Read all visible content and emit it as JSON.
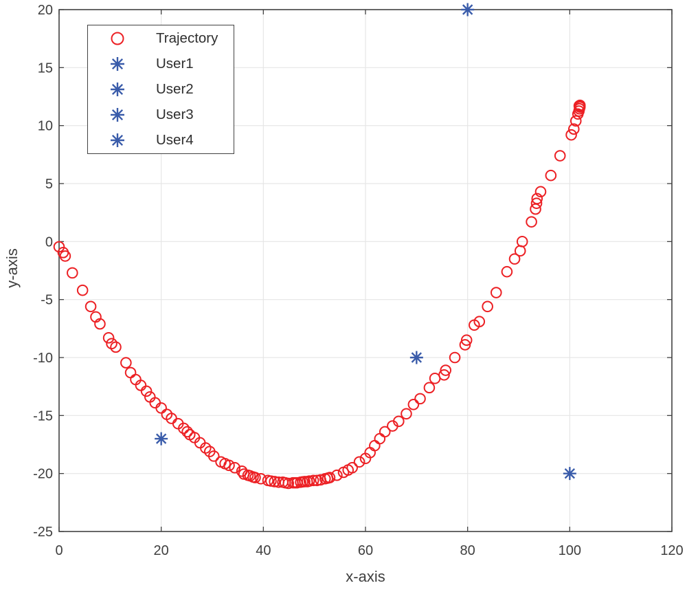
{
  "figure": {
    "background": "#ffffff"
  },
  "chart_data": {
    "type": "scatter",
    "title": "",
    "xlabel": "x-axis",
    "ylabel": "y-axis",
    "xlim": [
      0,
      120
    ],
    "ylim": [
      -25,
      20
    ],
    "xticks": [
      0,
      20,
      40,
      60,
      80,
      100,
      120
    ],
    "yticks": [
      -25,
      -20,
      -15,
      -10,
      -5,
      0,
      5,
      10,
      15,
      20
    ],
    "grid": true,
    "legend_position": "top-left",
    "axis_color": "#414141",
    "grid_color": "#e6e6e6",
    "tick_label_color": "#3f3f3f",
    "series": [
      {
        "name": "Trajectory",
        "marker": "circle",
        "color": "#ec2024",
        "points": [
          [
            0.0,
            -0.45
          ],
          [
            0.8,
            -0.95
          ],
          [
            1.2,
            -1.25
          ],
          [
            2.6,
            -2.7
          ],
          [
            4.6,
            -4.2
          ],
          [
            6.2,
            -5.6
          ],
          [
            7.2,
            -6.5
          ],
          [
            8.0,
            -7.1
          ],
          [
            9.7,
            -8.3
          ],
          [
            10.3,
            -8.8
          ],
          [
            11.1,
            -9.1
          ],
          [
            13.1,
            -10.45
          ],
          [
            14.0,
            -11.3
          ],
          [
            15.0,
            -11.9
          ],
          [
            16.0,
            -12.4
          ],
          [
            17.1,
            -12.9
          ],
          [
            17.8,
            -13.4
          ],
          [
            18.8,
            -13.9
          ],
          [
            20.0,
            -14.35
          ],
          [
            21.1,
            -14.9
          ],
          [
            22.0,
            -15.25
          ],
          [
            23.3,
            -15.7
          ],
          [
            24.4,
            -16.1
          ],
          [
            25.1,
            -16.4
          ],
          [
            25.6,
            -16.65
          ],
          [
            26.5,
            -16.9
          ],
          [
            27.6,
            -17.35
          ],
          [
            28.7,
            -17.8
          ],
          [
            29.5,
            -18.1
          ],
          [
            30.3,
            -18.5
          ],
          [
            31.7,
            -19.0
          ],
          [
            32.5,
            -19.15
          ],
          [
            33.3,
            -19.3
          ],
          [
            34.4,
            -19.5
          ],
          [
            35.8,
            -19.8
          ],
          [
            36.2,
            -20.05
          ],
          [
            37.0,
            -20.15
          ],
          [
            37.4,
            -20.2
          ],
          [
            38.0,
            -20.3
          ],
          [
            38.4,
            -20.35
          ],
          [
            39.5,
            -20.45
          ],
          [
            40.9,
            -20.6
          ],
          [
            41.5,
            -20.65
          ],
          [
            42.2,
            -20.7
          ],
          [
            43.0,
            -20.75
          ],
          [
            43.8,
            -20.75
          ],
          [
            44.3,
            -20.8
          ],
          [
            44.9,
            -20.85
          ],
          [
            45.8,
            -20.8
          ],
          [
            46.2,
            -20.8
          ],
          [
            46.6,
            -20.8
          ],
          [
            47.3,
            -20.75
          ],
          [
            47.7,
            -20.72
          ],
          [
            48.1,
            -20.7
          ],
          [
            48.6,
            -20.7
          ],
          [
            49.0,
            -20.65
          ],
          [
            49.8,
            -20.6
          ],
          [
            50.5,
            -20.6
          ],
          [
            51.2,
            -20.55
          ],
          [
            52.1,
            -20.45
          ],
          [
            52.6,
            -20.4
          ],
          [
            53.0,
            -20.35
          ],
          [
            54.4,
            -20.15
          ],
          [
            55.7,
            -19.9
          ],
          [
            56.6,
            -19.7
          ],
          [
            57.4,
            -19.5
          ],
          [
            58.8,
            -19.0
          ],
          [
            60.0,
            -18.7
          ],
          [
            60.9,
            -18.2
          ],
          [
            61.8,
            -17.6
          ],
          [
            62.8,
            -17.0
          ],
          [
            63.8,
            -16.4
          ],
          [
            65.3,
            -15.9
          ],
          [
            66.5,
            -15.5
          ],
          [
            68.0,
            -14.85
          ],
          [
            69.4,
            -14.05
          ],
          [
            70.7,
            -13.55
          ],
          [
            72.5,
            -12.6
          ],
          [
            73.6,
            -11.8
          ],
          [
            75.4,
            -11.5
          ],
          [
            75.7,
            -11.1
          ],
          [
            77.5,
            -10.0
          ],
          [
            79.5,
            -8.9
          ],
          [
            79.8,
            -8.5
          ],
          [
            81.3,
            -7.2
          ],
          [
            82.3,
            -6.9
          ],
          [
            83.9,
            -5.6
          ],
          [
            85.6,
            -4.4
          ],
          [
            87.7,
            -2.6
          ],
          [
            89.2,
            -1.5
          ],
          [
            90.3,
            -0.8
          ],
          [
            90.7,
            0.0
          ],
          [
            92.5,
            1.7
          ],
          [
            93.3,
            2.8
          ],
          [
            93.5,
            3.3
          ],
          [
            93.6,
            3.7
          ],
          [
            94.3,
            4.3
          ],
          [
            96.3,
            5.7
          ],
          [
            98.1,
            7.4
          ],
          [
            100.3,
            9.2
          ],
          [
            100.8,
            9.7
          ],
          [
            101.2,
            10.4
          ],
          [
            101.6,
            11.0
          ],
          [
            101.8,
            11.25
          ],
          [
            101.9,
            11.45
          ],
          [
            102.0,
            11.6
          ],
          [
            101.85,
            11.7
          ],
          [
            102.0,
            11.75
          ]
        ]
      },
      {
        "name": "User1",
        "marker": "asterisk",
        "color": "#3a5caa",
        "points": [
          [
            20,
            -17
          ]
        ]
      },
      {
        "name": "User2",
        "marker": "asterisk",
        "color": "#3a5caa",
        "points": [
          [
            70,
            -10
          ]
        ]
      },
      {
        "name": "User3",
        "marker": "asterisk",
        "color": "#3a5caa",
        "points": [
          [
            80,
            20
          ]
        ]
      },
      {
        "name": "User4",
        "marker": "asterisk",
        "color": "#3a5caa",
        "points": [
          [
            100,
            -20
          ]
        ]
      }
    ]
  }
}
